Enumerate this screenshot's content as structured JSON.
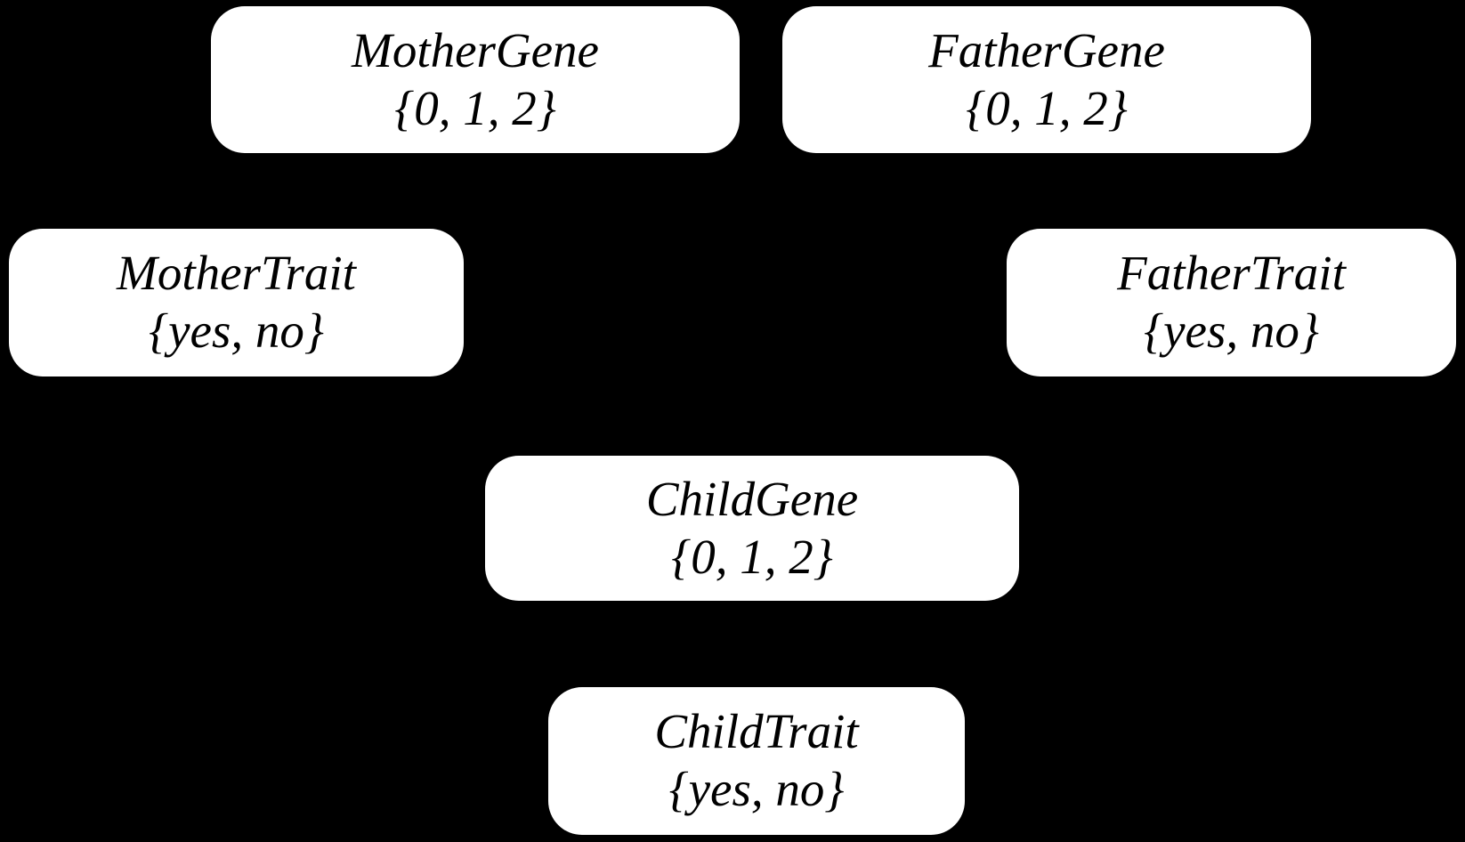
{
  "diagram": {
    "background_color": "#000000",
    "node_fill_color": "#ffffff",
    "node_text_color": "#000000",
    "nodes": [
      {
        "id": "mother-gene",
        "label": "MotherGene",
        "domain": "{0, 1, 2}"
      },
      {
        "id": "father-gene",
        "label": "FatherGene",
        "domain": "{0, 1, 2}"
      },
      {
        "id": "mother-trait",
        "label": "MotherTrait",
        "domain": "{yes, no}"
      },
      {
        "id": "father-trait",
        "label": "FatherTrait",
        "domain": "{yes, no}"
      },
      {
        "id": "child-gene",
        "label": "ChildGene",
        "domain": "{0, 1, 2}"
      },
      {
        "id": "child-trait",
        "label": "ChildTrait",
        "domain": "{yes, no}"
      }
    ]
  }
}
